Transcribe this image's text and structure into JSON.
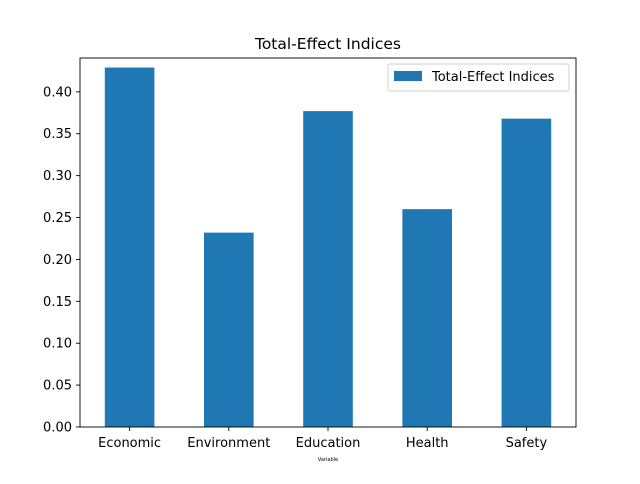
{
  "chart_data": {
    "type": "bar",
    "title": "Total-Effect Indices",
    "xlabel": "Variable",
    "ylabel": "",
    "categories": [
      "Economic",
      "Environment",
      "Education",
      "Health",
      "Safety"
    ],
    "series": [
      {
        "name": "Total-Effect Indices",
        "values": [
          0.429,
          0.232,
          0.377,
          0.26,
          0.368
        ],
        "color": "#1f77b4"
      }
    ],
    "ylim": [
      0,
      0.4404
    ],
    "yticks": [
      0.0,
      0.05,
      0.1,
      0.15,
      0.2,
      0.25,
      0.3,
      0.35,
      0.4
    ],
    "ytick_labels": [
      "0.00",
      "0.05",
      "0.10",
      "0.15",
      "0.20",
      "0.25",
      "0.30",
      "0.35",
      "0.40"
    ],
    "grid": false,
    "legend": {
      "position": "top-right",
      "label": "Total-Effect Indices"
    }
  }
}
